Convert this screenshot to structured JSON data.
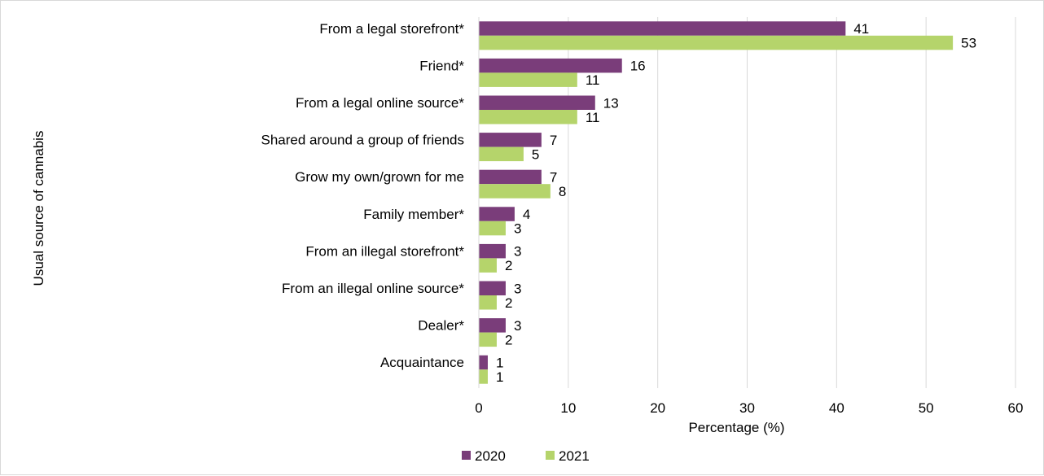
{
  "chart_data": {
    "type": "bar",
    "orientation": "horizontal",
    "categories": [
      "From a legal storefront*",
      "Friend*",
      "From a legal online source*",
      "Shared around a group of friends",
      "Grow my own/grown for me",
      "Family member*",
      "From an illegal storefront*",
      "From an illegal online source*",
      "Dealer*",
      "Acquaintance"
    ],
    "series": [
      {
        "name": "2020",
        "color": "#7a3d7a",
        "values": [
          41,
          16,
          13,
          7,
          7,
          4,
          3,
          3,
          3,
          1
        ]
      },
      {
        "name": "2021",
        "color": "#b5d46b",
        "values": [
          53,
          11,
          11,
          5,
          8,
          3,
          2,
          2,
          2,
          1
        ]
      }
    ],
    "xlabel": "Percentage (%)",
    "ylabel": "Usual source of cannabis",
    "xlim": [
      0,
      60
    ],
    "xticks": [
      "0",
      "10",
      "20",
      "30",
      "40",
      "50",
      "60"
    ],
    "grid": "vertical",
    "legend_position": "bottom"
  }
}
